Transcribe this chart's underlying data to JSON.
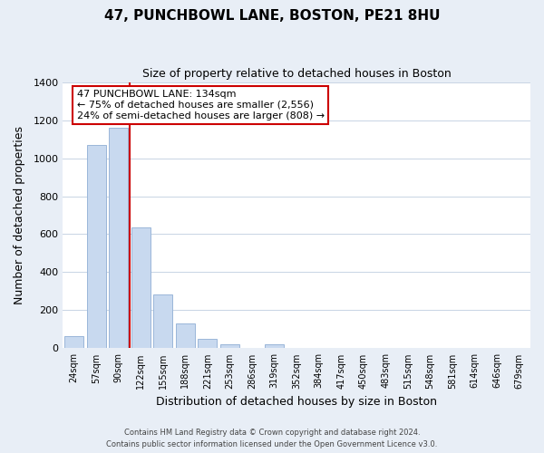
{
  "title": "47, PUNCHBOWL LANE, BOSTON, PE21 8HU",
  "subtitle": "Size of property relative to detached houses in Boston",
  "xlabel": "Distribution of detached houses by size in Boston",
  "ylabel": "Number of detached properties",
  "categories": [
    "24sqm",
    "57sqm",
    "90sqm",
    "122sqm",
    "155sqm",
    "188sqm",
    "221sqm",
    "253sqm",
    "286sqm",
    "319sqm",
    "352sqm",
    "384sqm",
    "417sqm",
    "450sqm",
    "483sqm",
    "515sqm",
    "548sqm",
    "581sqm",
    "614sqm",
    "646sqm",
    "679sqm"
  ],
  "values": [
    65,
    1070,
    1160,
    635,
    285,
    130,
    48,
    20,
    0,
    20,
    0,
    0,
    0,
    0,
    0,
    0,
    0,
    0,
    0,
    0,
    0
  ],
  "bar_color": "#c8d9ef",
  "bar_edge_color": "#9ab6d9",
  "red_line_x": 2.5,
  "annotation_title": "47 PUNCHBOWL LANE: 134sqm",
  "annotation_line1": "← 75% of detached houses are smaller (2,556)",
  "annotation_line2": "24% of semi-detached houses are larger (808) →",
  "annotation_box_facecolor": "#ffffff",
  "annotation_box_edgecolor": "#cc0000",
  "ylim": [
    0,
    1400
  ],
  "yticks": [
    0,
    200,
    400,
    600,
    800,
    1000,
    1200,
    1400
  ],
  "footer1": "Contains HM Land Registry data © Crown copyright and database right 2024.",
  "footer2": "Contains public sector information licensed under the Open Government Licence v3.0.",
  "bg_color": "#e8eef6",
  "plot_bg_color": "#ffffff",
  "grid_color": "#c8d4e4"
}
